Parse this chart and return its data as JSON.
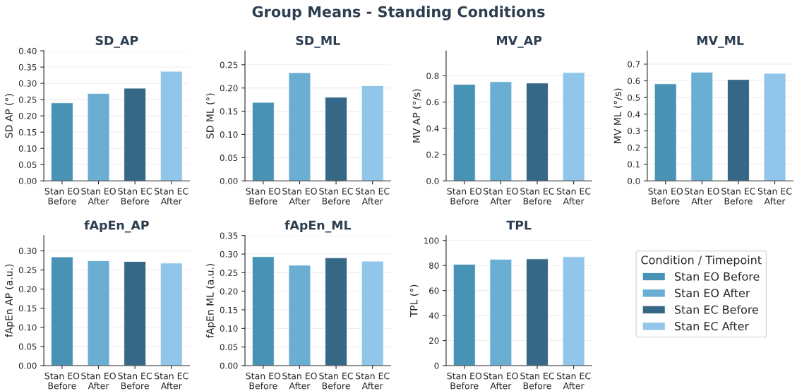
{
  "chart_data": [
    {
      "type": "bar",
      "title": "SD_AP",
      "ylabel": "SD AP (°)",
      "annotations": [
        "Group Means - Standing Conditions"
      ],
      "categories": [
        "Stan EO Before",
        "Stan EO After",
        "Stan EC Before",
        "Stan EC After"
      ],
      "series": [
        {
          "color": "#4893b5",
          "values": [
            0.24,
            null,
            null,
            null
          ]
        },
        {
          "color": "#6baed3",
          "values": [
            null,
            0.269,
            null,
            null
          ]
        },
        {
          "color": "#356787",
          "values": [
            null,
            null,
            0.285,
            null
          ]
        },
        {
          "color": "#91c6ea",
          "values": [
            null,
            null,
            null,
            0.337
          ]
        }
      ],
      "ylim": [
        0,
        0.4
      ],
      "yticks": [
        {
          "value": 0,
          "label": "0.00"
        },
        0.05,
        {
          "value": 0.1,
          "label": "0.10"
        },
        0.15,
        {
          "value": 0.2,
          "label": "0.20"
        },
        0.25,
        {
          "value": 0.3,
          "label": "0.30"
        },
        0.35,
        {
          "value": 0.4,
          "label": "0.40"
        }
      ],
      "grid": "y"
    },
    {
      "type": "bar",
      "title": "SD_ML",
      "ylabel": "SD ML (°)",
      "categories": [
        "Stan EO Before",
        "Stan EO After",
        "Stan EC Before",
        "Stan EC After"
      ],
      "series": [
        {
          "color": "#4893b5",
          "values": [
            0.169,
            null,
            null,
            null
          ]
        },
        {
          "color": "#6baed3",
          "values": [
            null,
            0.233,
            null,
            null
          ]
        },
        {
          "color": "#356787",
          "values": [
            null,
            null,
            0.18,
            null
          ]
        },
        {
          "color": "#91c6ea",
          "values": [
            null,
            null,
            null,
            0.205
          ]
        }
      ],
      "ylim": [
        0,
        0.28
      ],
      "yticks": [
        {
          "value": 0,
          "label": "0.00"
        },
        0.05,
        {
          "value": 0.1,
          "label": "0.10"
        },
        0.15,
        {
          "value": 0.2,
          "label": "0.20"
        },
        0.25
      ],
      "grid": "y"
    },
    {
      "type": "bar",
      "title": "MV_AP",
      "ylabel": "MV AP (°/s)",
      "categories": [
        "Stan EO Before",
        "Stan EO After",
        "Stan EC Before",
        "Stan EC After"
      ],
      "series": [
        {
          "color": "#4893b5",
          "values": [
            0.735,
            null,
            null,
            null
          ]
        },
        {
          "color": "#6baed3",
          "values": [
            null,
            0.755,
            null,
            null
          ]
        },
        {
          "color": "#356787",
          "values": [
            null,
            null,
            0.745,
            null
          ]
        },
        {
          "color": "#91c6ea",
          "values": [
            null,
            null,
            null,
            0.825
          ]
        }
      ],
      "ylim": [
        0,
        0.99
      ],
      "yticks": [
        {
          "value": 0,
          "label": "0.0"
        },
        0.2,
        0.4,
        0.6,
        0.8
      ],
      "grid": "y"
    },
    {
      "type": "bar",
      "title": "MV_ML",
      "ylabel": "MV ML (°/s)",
      "categories": [
        "Stan EO Before",
        "Stan EO After",
        "Stan EC Before",
        "Stan EC After"
      ],
      "series": [
        {
          "color": "#4893b5",
          "values": [
            0.582,
            null,
            null,
            null
          ]
        },
        {
          "color": "#6baed3",
          "values": [
            null,
            0.652,
            null,
            null
          ]
        },
        {
          "color": "#356787",
          "values": [
            null,
            null,
            0.608,
            null
          ]
        },
        {
          "color": "#91c6ea",
          "values": [
            null,
            null,
            null,
            0.645
          ]
        }
      ],
      "ylim": [
        0,
        0.78
      ],
      "yticks": [
        {
          "value": 0,
          "label": "0.0"
        },
        0.1,
        0.2,
        0.3,
        0.4,
        0.5,
        0.6,
        0.7
      ],
      "grid": "y"
    },
    {
      "type": "bar",
      "title": "fApEn_AP",
      "ylabel": "fApEn AP (a.u.)",
      "categories": [
        "Stan EO Before",
        "Stan EO After",
        "Stan EC Before",
        "Stan EC After"
      ],
      "series": [
        {
          "color": "#4893b5",
          "values": [
            0.284,
            null,
            null,
            null
          ]
        },
        {
          "color": "#6baed3",
          "values": [
            null,
            0.274,
            null,
            null
          ]
        },
        {
          "color": "#356787",
          "values": [
            null,
            null,
            0.272,
            null
          ]
        },
        {
          "color": "#91c6ea",
          "values": [
            null,
            null,
            null,
            0.268
          ]
        }
      ],
      "ylim": [
        0,
        0.34
      ],
      "yticks": [
        {
          "value": 0,
          "label": "0.00"
        },
        0.05,
        {
          "value": 0.1,
          "label": "0.10"
        },
        0.15,
        {
          "value": 0.2,
          "label": "0.20"
        },
        0.25,
        {
          "value": 0.3,
          "label": "0.30"
        }
      ],
      "grid": "y"
    },
    {
      "type": "bar",
      "title": "fApEn_ML",
      "ylabel": "fApEn ML (a.u.)",
      "categories": [
        "Stan EO Before",
        "Stan EO After",
        "Stan EC Before",
        "Stan EC After"
      ],
      "series": [
        {
          "color": "#4893b5",
          "values": [
            0.293,
            null,
            null,
            null
          ]
        },
        {
          "color": "#6baed3",
          "values": [
            null,
            0.27,
            null,
            null
          ]
        },
        {
          "color": "#356787",
          "values": [
            null,
            null,
            0.29,
            null
          ]
        },
        {
          "color": "#91c6ea",
          "values": [
            null,
            null,
            null,
            0.281
          ]
        }
      ],
      "ylim": [
        0,
        0.35
      ],
      "yticks": [
        {
          "value": 0,
          "label": "0.00"
        },
        0.05,
        {
          "value": 0.1,
          "label": "0.10"
        },
        0.15,
        {
          "value": 0.2,
          "label": "0.20"
        },
        0.25,
        {
          "value": 0.3,
          "label": "0.30"
        },
        0.35
      ],
      "grid": "y"
    },
    {
      "type": "bar",
      "title": "TPL",
      "ylabel": "TPL (°)",
      "categories": [
        "Stan EO Before",
        "Stan EO After",
        "Stan EC Before",
        "Stan EC After"
      ],
      "series": [
        {
          "name": "Stan EO Before",
          "color": "#4893b5",
          "values": [
            81,
            null,
            null,
            null
          ]
        },
        {
          "name": "Stan EO After",
          "color": "#6baed3",
          "values": [
            null,
            85,
            null,
            null
          ]
        },
        {
          "name": "Stan EC Before",
          "color": "#356787",
          "values": [
            null,
            null,
            85.3,
            null
          ]
        },
        {
          "name": "Stan EC After",
          "color": "#91c6ea",
          "values": [
            null,
            null,
            null,
            87
          ]
        }
      ],
      "ylim": [
        0,
        104
      ],
      "yticks": [
        0,
        20,
        40,
        60,
        80,
        100
      ],
      "grid": "y",
      "legend": "right",
      "legend_title": "Condition / Timepoint"
    }
  ]
}
